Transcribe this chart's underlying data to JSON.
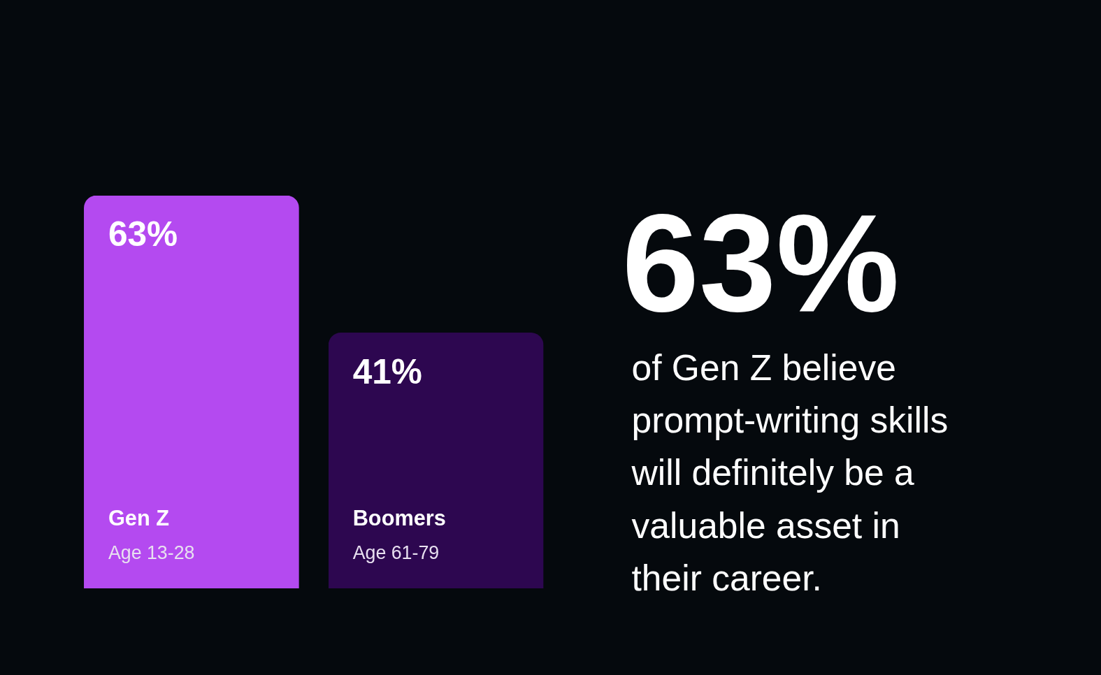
{
  "chart_data": {
    "type": "bar",
    "categories": [
      "Gen Z",
      "Boomers"
    ],
    "values": [
      63,
      41
    ],
    "colors": [
      "#b44af0",
      "#2d0750"
    ],
    "value_labels": [
      "63%",
      "41%"
    ],
    "annotations": [
      "Age 13-28",
      "Age 61-79",
      "63%",
      "of Gen Z believe",
      "prompt-writing skills",
      "will definitely be a",
      "valuable asset in",
      "their career."
    ]
  }
}
